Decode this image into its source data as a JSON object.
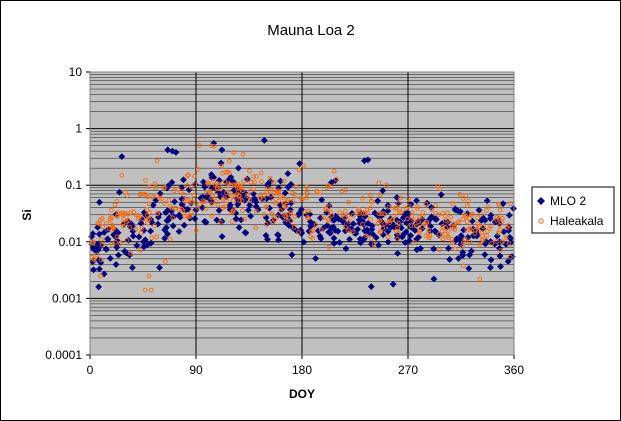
{
  "chart_data": {
    "type": "scatter",
    "title": "Mauna Loa 2",
    "xlabel": "DOY",
    "ylabel": "Si",
    "xlim": [
      0,
      360
    ],
    "ylim": [
      0.0001,
      10
    ],
    "y_scale": "log",
    "x_ticks": [
      "0",
      "90",
      "180",
      "270",
      "360"
    ],
    "y_ticks": [
      "0.0001",
      "0.001",
      "0.01",
      "0.1",
      "1",
      "10"
    ],
    "grid": true,
    "legend_position": "right",
    "series": [
      {
        "name": "MLO 2",
        "marker": "diamond",
        "color": "#000080",
        "trend": [
          [
            0,
            0.007
          ],
          [
            30,
            0.012
          ],
          [
            50,
            0.02
          ],
          [
            70,
            0.04
          ],
          [
            90,
            0.06
          ],
          [
            110,
            0.08
          ],
          [
            130,
            0.06
          ],
          [
            150,
            0.045
          ],
          [
            180,
            0.025
          ],
          [
            210,
            0.02
          ],
          [
            240,
            0.02
          ],
          [
            270,
            0.02
          ],
          [
            300,
            0.016
          ],
          [
            330,
            0.013
          ],
          [
            360,
            0.011
          ]
        ],
        "spread": 0.42,
        "count": 430,
        "outliers": [
          [
            27,
            0.32
          ],
          [
            66,
            0.42
          ],
          [
            70,
            0.4
          ],
          [
            73,
            0.38
          ],
          [
            105,
            0.55
          ],
          [
            112,
            0.42
          ],
          [
            148,
            0.62
          ],
          [
            178,
            0.24
          ],
          [
            233,
            0.27
          ],
          [
            236,
            0.28
          ],
          [
            59,
            0.0035
          ],
          [
            36,
            0.0035
          ],
          [
            12,
            0.0027
          ],
          [
            3,
            0.0032
          ],
          [
            292,
            0.0022
          ],
          [
            340,
            0.0035
          ],
          [
            355,
            0.0045
          ],
          [
            25,
            0.075
          ],
          [
            8,
            0.05
          ],
          [
            168,
            0.16
          ],
          [
            126,
            0.2
          ]
        ]
      },
      {
        "name": "Haleakala",
        "marker": "circle",
        "color": "#FF6600",
        "trend": [
          [
            0,
            0.012
          ],
          [
            30,
            0.025
          ],
          [
            50,
            0.03
          ],
          [
            70,
            0.05
          ],
          [
            90,
            0.07
          ],
          [
            110,
            0.09
          ],
          [
            130,
            0.08
          ],
          [
            150,
            0.06
          ],
          [
            180,
            0.04
          ],
          [
            210,
            0.035
          ],
          [
            240,
            0.03
          ],
          [
            270,
            0.026
          ],
          [
            300,
            0.022
          ],
          [
            330,
            0.018
          ],
          [
            360,
            0.016
          ]
        ],
        "spread": 0.45,
        "count": 470,
        "outliers": [
          [
            47,
            0.0014
          ],
          [
            52,
            0.0014
          ],
          [
            50,
            0.0025
          ],
          [
            103,
            0.5
          ],
          [
            93,
            0.5
          ],
          [
            57,
            0.27
          ],
          [
            9,
            0.0025
          ],
          [
            331,
            0.0022
          ],
          [
            122,
            0.38
          ],
          [
            27,
            0.15
          ],
          [
            130,
            0.35
          ],
          [
            64,
            0.0045
          ]
        ]
      }
    ]
  }
}
